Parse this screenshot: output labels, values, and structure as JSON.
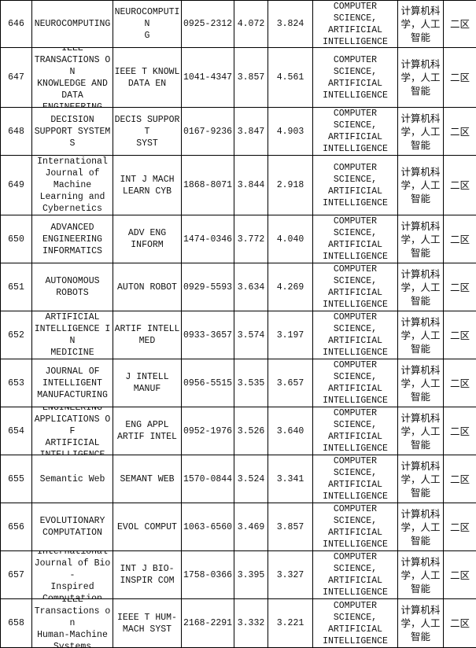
{
  "rows": [
    {
      "no": "646",
      "title": "NEUROCOMPUTING",
      "abbr": "NEUROCOMPUTIN\nG",
      "issn": "0925-2312",
      "if1": "4.072",
      "if2": "3.824",
      "cat": "COMPUTER\nSCIENCE,\nARTIFICIAL\nINTELLIGENCE",
      "cn": "计算机科\n学，人工\n智能",
      "zone": "二区"
    },
    {
      "no": "647",
      "title": "IEEE\nTRANSACTIONS ON\nKNOWLEDGE AND\nDATA\nENGINEERING",
      "abbr": "IEEE T KNOWL\nDATA EN",
      "issn": "1041-4347",
      "if1": "3.857",
      "if2": "4.561",
      "cat": "COMPUTER\nSCIENCE,\nARTIFICIAL\nINTELLIGENCE",
      "cn": "计算机科\n学，人工\n智能",
      "zone": "二区"
    },
    {
      "no": "648",
      "title": "DECISION\nSUPPORT SYSTEMS",
      "abbr": "DECIS SUPPORT\nSYST",
      "issn": "0167-9236",
      "if1": "3.847",
      "if2": "4.903",
      "cat": "COMPUTER\nSCIENCE,\nARTIFICIAL\nINTELLIGENCE",
      "cn": "计算机科\n学，人工\n智能",
      "zone": "二区"
    },
    {
      "no": "649",
      "title": "International\nJournal of\nMachine\nLearning and\nCybernetics",
      "abbr": "INT J MACH\nLEARN CYB",
      "issn": "1868-8071",
      "if1": "3.844",
      "if2": "2.918",
      "cat": "COMPUTER\nSCIENCE,\nARTIFICIAL\nINTELLIGENCE",
      "cn": "计算机科\n学，人工\n智能",
      "zone": "二区"
    },
    {
      "no": "650",
      "title": "ADVANCED\nENGINEERING\nINFORMATICS",
      "abbr": "ADV ENG\nINFORM",
      "issn": "1474-0346",
      "if1": "3.772",
      "if2": "4.040",
      "cat": "COMPUTER\nSCIENCE,\nARTIFICIAL\nINTELLIGENCE",
      "cn": "计算机科\n学，人工\n智能",
      "zone": "二区"
    },
    {
      "no": "651",
      "title": "AUTONOMOUS\nROBOTS",
      "abbr": "AUTON ROBOT",
      "issn": "0929-5593",
      "if1": "3.634",
      "if2": "4.269",
      "cat": "COMPUTER\nSCIENCE,\nARTIFICIAL\nINTELLIGENCE",
      "cn": "计算机科\n学，人工\n智能",
      "zone": "二区"
    },
    {
      "no": "652",
      "title": "ARTIFICIAL\nINTELLIGENCE IN\nMEDICINE",
      "abbr": "ARTIF INTELL\nMED",
      "issn": "0933-3657",
      "if1": "3.574",
      "if2": "3.197",
      "cat": "COMPUTER\nSCIENCE,\nARTIFICIAL\nINTELLIGENCE",
      "cn": "计算机科\n学，人工\n智能",
      "zone": "二区"
    },
    {
      "no": "653",
      "title": "JOURNAL OF\nINTELLIGENT\nMANUFACTURING",
      "abbr": "J INTELL\nMANUF",
      "issn": "0956-5515",
      "if1": "3.535",
      "if2": "3.657",
      "cat": "COMPUTER\nSCIENCE,\nARTIFICIAL\nINTELLIGENCE",
      "cn": "计算机科\n学，人工\n智能",
      "zone": "二区"
    },
    {
      "no": "654",
      "title": "ENGINEERING\nAPPLICATIONS OF\nARTIFICIAL\nINTELLIGENCE",
      "abbr": "ENG APPL\nARTIF INTEL",
      "issn": "0952-1976",
      "if1": "3.526",
      "if2": "3.640",
      "cat": "COMPUTER\nSCIENCE,\nARTIFICIAL\nINTELLIGENCE",
      "cn": "计算机科\n学，人工\n智能",
      "zone": "二区"
    },
    {
      "no": "655",
      "title": "Semantic Web",
      "abbr": "SEMANT WEB",
      "issn": "1570-0844",
      "if1": "3.524",
      "if2": "3.341",
      "cat": "COMPUTER\nSCIENCE,\nARTIFICIAL\nINTELLIGENCE",
      "cn": "计算机科\n学，人工\n智能",
      "zone": "二区"
    },
    {
      "no": "656",
      "title": "EVOLUTIONARY\nCOMPUTATION",
      "abbr": "EVOL COMPUT",
      "issn": "1063-6560",
      "if1": "3.469",
      "if2": "3.857",
      "cat": "COMPUTER\nSCIENCE,\nARTIFICIAL\nINTELLIGENCE",
      "cn": "计算机科\n学，人工\n智能",
      "zone": "二区"
    },
    {
      "no": "657",
      "title": "International\nJournal of Bio-\nInspired\nComputation",
      "abbr": "INT J BIO-\nINSPIR COM",
      "issn": "1758-0366",
      "if1": "3.395",
      "if2": "3.327",
      "cat": "COMPUTER\nSCIENCE,\nARTIFICIAL\nINTELLIGENCE",
      "cn": "计算机科\n学，人工\n智能",
      "zone": "二区"
    },
    {
      "no": "658",
      "title": "IEEE\nTransactions on\nHuman-Machine\nSystems",
      "abbr": "IEEE T HUM-\nMACH SYST",
      "issn": "2168-2291",
      "if1": "3.332",
      "if2": "3.221",
      "cat": "COMPUTER\nSCIENCE,\nARTIFICIAL\nINTELLIGENCE",
      "cn": "计算机科\n学，人工\n智能",
      "zone": "二区"
    }
  ]
}
